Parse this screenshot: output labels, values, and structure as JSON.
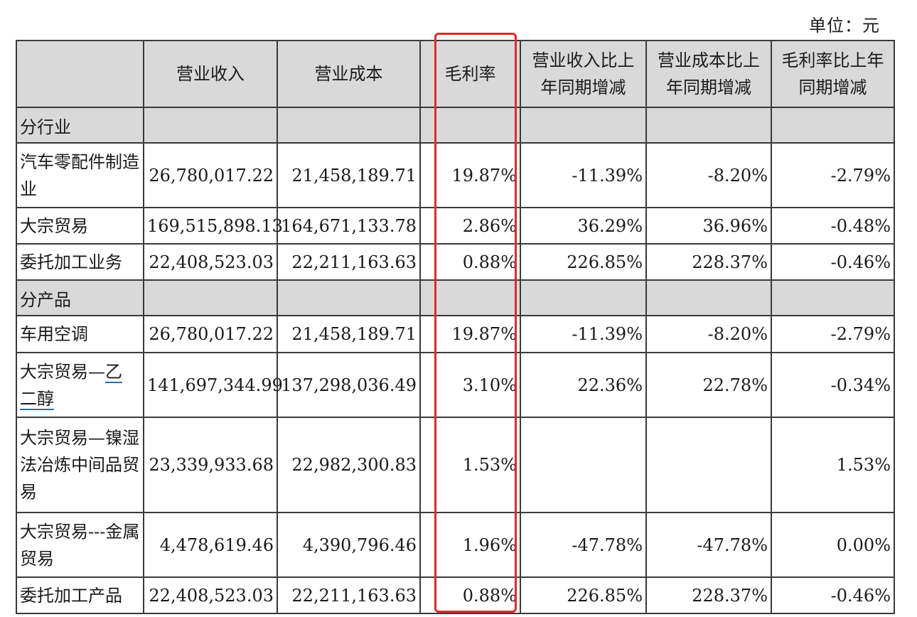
{
  "unit_label": "单位：元",
  "headers": [
    "",
    "营业收入",
    "营业成本",
    "毛利率",
    "营业收入比上年同期增减",
    "营业成本比上年同期增减",
    "毛利率比上年同期增减"
  ],
  "sections": [
    {
      "title": "分行业",
      "rows": [
        {
          "name": "汽车零配件制造业",
          "revenue": "26,780,017.22",
          "cost": "21,458,189.71",
          "margin": "19.87%",
          "rev_change": "-11.39%",
          "cost_change": "-8.20%",
          "margin_change": "-2.79%"
        },
        {
          "name": "大宗贸易",
          "revenue": "169,515,898.13",
          "cost": "164,671,133.78",
          "margin": "2.86%",
          "rev_change": "36.29%",
          "cost_change": "36.96%",
          "margin_change": "-0.48%"
        },
        {
          "name": "委托加工业务",
          "revenue": "22,408,523.03",
          "cost": "22,211,163.63",
          "margin": "0.88%",
          "rev_change": "226.85%",
          "cost_change": "228.37%",
          "margin_change": "-0.46%"
        }
      ]
    },
    {
      "title": "分产品",
      "rows": [
        {
          "name": "车用空调",
          "revenue": "26,780,017.22",
          "cost": "21,458,189.71",
          "margin": "19.87%",
          "rev_change": "-11.39%",
          "cost_change": "-8.20%",
          "margin_change": "-2.79%"
        },
        {
          "name_a": "大宗贸易—",
          "name_b": "乙",
          "name_c": "二醇",
          "revenue": "141,697,344.99",
          "cost": "137,298,036.49",
          "margin": "3.10%",
          "rev_change": "22.36%",
          "cost_change": "22.78%",
          "margin_change": "-0.34%"
        },
        {
          "name": "大宗贸易—镍湿法冶炼中间品贸易",
          "revenue": "23,339,933.68",
          "cost": "22,982,300.83",
          "margin": "1.53%",
          "rev_change": "",
          "cost_change": "",
          "margin_change": "1.53%"
        },
        {
          "name": "大宗贸易---金属贸易",
          "revenue": "4,478,619.46",
          "cost": "4,390,796.46",
          "margin": "1.96%",
          "rev_change": "-47.78%",
          "cost_change": "-47.78%",
          "margin_change": "0.00%"
        },
        {
          "name": "委托加工产品",
          "revenue": "22,408,523.03",
          "cost": "22,211,163.63",
          "margin": "0.88%",
          "rev_change": "226.85%",
          "cost_change": "228.37%",
          "margin_change": "-0.46%"
        }
      ]
    }
  ],
  "highlight_color": "#e02b2b",
  "header_bg": "#d9d9d9"
}
